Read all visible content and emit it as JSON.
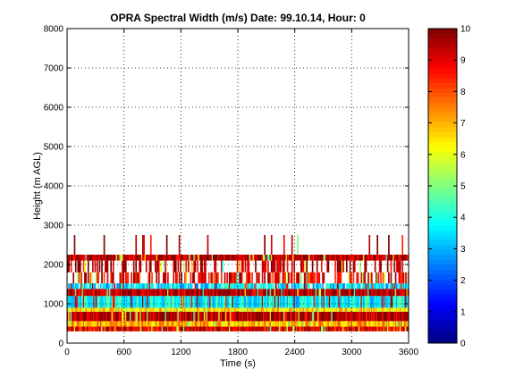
{
  "chart_data": {
    "type": "heatmap",
    "title": "OPRA Spectral Width (m/s)  Date: 99.10.14, Hour: 0",
    "xlabel": "Time (s)",
    "ylabel": "Height (m AGL)",
    "xlim": [
      0,
      3600
    ],
    "ylim": [
      0,
      8000
    ],
    "xticks": [
      "0",
      "600",
      "1200",
      "1800",
      "2400",
      "3000",
      "3600"
    ],
    "yticks": [
      "0",
      "1000",
      "2000",
      "3000",
      "4000",
      "5000",
      "6000",
      "7000",
      "8000"
    ],
    "grid": true,
    "colorbar": {
      "range": [
        0,
        10
      ],
      "ticks": [
        "0",
        "1",
        "2",
        "3",
        "4",
        "5",
        "6",
        "7",
        "8",
        "9",
        "10"
      ],
      "colormap": "jet"
    },
    "bands": [
      {
        "y0": 300,
        "y1": 420,
        "value": 9.0,
        "coverage": 1.0
      },
      {
        "y0": 420,
        "y1": 560,
        "value": 7.0,
        "coverage": 1.0
      },
      {
        "y0": 560,
        "y1": 800,
        "value": 9.5,
        "coverage": 1.0
      },
      {
        "y0": 800,
        "y1": 900,
        "value": 6.5,
        "coverage": 1.0
      },
      {
        "y0": 900,
        "y1": 1200,
        "value": 3.8,
        "coverage": 1.0
      },
      {
        "y0": 1200,
        "y1": 1380,
        "value": 9.5,
        "coverage": 1.0
      },
      {
        "y0": 1380,
        "y1": 1520,
        "value": 3.5,
        "coverage": 0.85
      },
      {
        "y0": 1520,
        "y1": 1800,
        "value": 9.0,
        "coverage": 0.55
      },
      {
        "y0": 1800,
        "y1": 2100,
        "value": 9.5,
        "coverage": 0.35
      },
      {
        "y0": 2100,
        "y1": 2250,
        "value": 9.5,
        "coverage": 1.0
      },
      {
        "y0": 2250,
        "y1": 2750,
        "value": 9.5,
        "coverage": 0.06
      }
    ]
  }
}
